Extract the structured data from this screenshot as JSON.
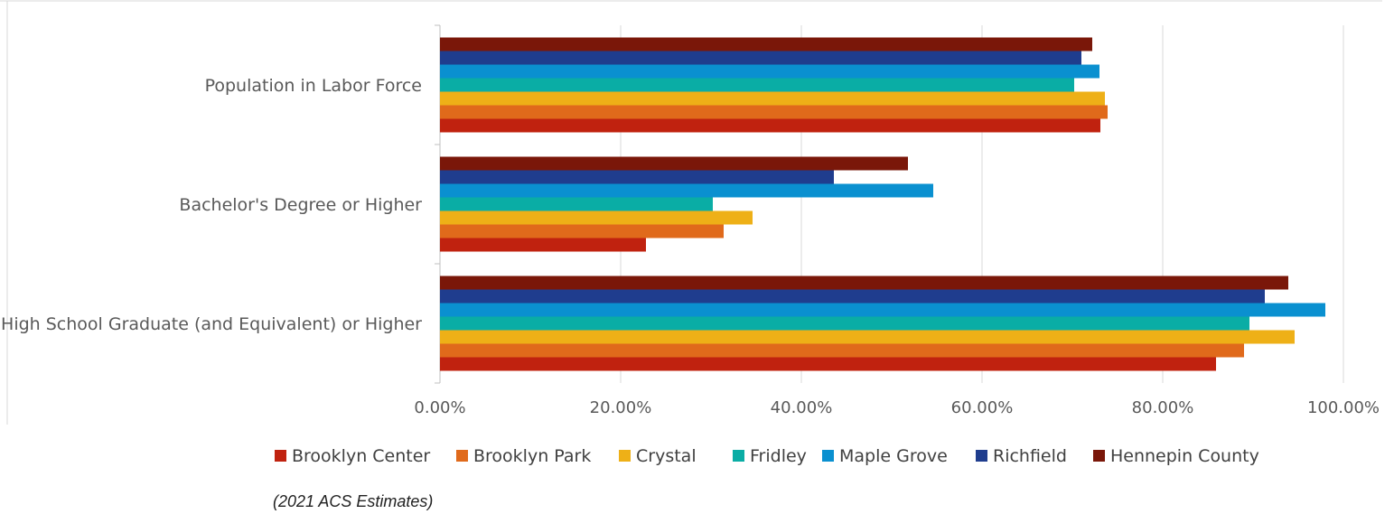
{
  "chart_data": {
    "type": "bar",
    "orientation": "horizontal",
    "categories": [
      "Population in Labor Force",
      "Bachelor's Degree or Higher",
      "High School Graduate (and Equivalent) or Higher"
    ],
    "series": [
      {
        "name": "Brooklyn Center",
        "color": "#C0220F",
        "values": [
          73.1,
          22.8,
          85.9
        ]
      },
      {
        "name": "Brooklyn Park",
        "color": "#E06A1B",
        "values": [
          73.9,
          31.4,
          89.0
        ]
      },
      {
        "name": "Crystal",
        "color": "#EEB017",
        "values": [
          73.6,
          34.6,
          94.6
        ]
      },
      {
        "name": "Fridley",
        "color": "#0AADA5",
        "values": [
          70.2,
          30.2,
          89.6
        ]
      },
      {
        "name": "Maple Grove",
        "color": "#0A90D0",
        "values": [
          73.0,
          54.6,
          98.0
        ]
      },
      {
        "name": "Richfield",
        "color": "#1F3D8E",
        "values": [
          71.0,
          43.6,
          91.3
        ]
      },
      {
        "name": "Hennepin County",
        "color": "#7A1709",
        "values": [
          72.2,
          51.8,
          93.9
        ]
      }
    ],
    "xlim": [
      0,
      100
    ],
    "x_ticks": [
      "0.00%",
      "20.00%",
      "40.00%",
      "60.00%",
      "80.00%",
      "100.00%"
    ],
    "x_tick_values": [
      0,
      20,
      40,
      60,
      80,
      100
    ],
    "grid": true,
    "legend_position": "bottom",
    "title": "",
    "xlabel": "",
    "ylabel": ""
  },
  "note": "(2021 ACS Estimates)"
}
